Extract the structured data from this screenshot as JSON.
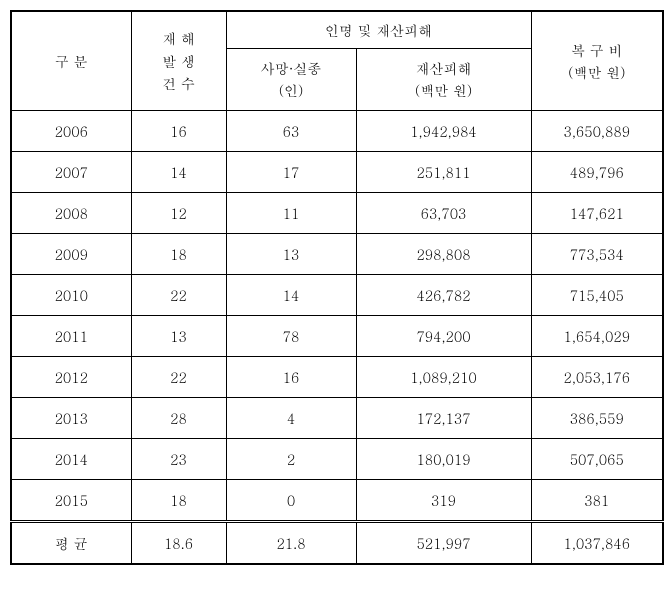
{
  "table": {
    "headers": {
      "category": "구  분",
      "disaster_count_line1": "재 해",
      "disaster_count_line2": "발 생",
      "disaster_count_line3": "건 수",
      "damage_group": "인명 및 재산피해",
      "deaths_line1": "사망·실종",
      "deaths_line2": "(인)",
      "property_line1": "재산피해",
      "property_line2": "(백만 원)",
      "recovery_line1": "복 구 비",
      "recovery_line2": "(백만 원)"
    },
    "rows": [
      {
        "year": "2006",
        "disasters": "16",
        "deaths": "63",
        "property": "1,942,984",
        "recovery": "3,650,889"
      },
      {
        "year": "2007",
        "disasters": "14",
        "deaths": "17",
        "property": "251,811",
        "recovery": "489,796"
      },
      {
        "year": "2008",
        "disasters": "12",
        "deaths": "11",
        "property": "63,703",
        "recovery": "147,621"
      },
      {
        "year": "2009",
        "disasters": "18",
        "deaths": "13",
        "property": "298,808",
        "recovery": "773,534"
      },
      {
        "year": "2010",
        "disasters": "22",
        "deaths": "14",
        "property": "426,782",
        "recovery": "715,405"
      },
      {
        "year": "2011",
        "disasters": "13",
        "deaths": "78",
        "property": "794,200",
        "recovery": "1,654,029"
      },
      {
        "year": "2012",
        "disasters": "22",
        "deaths": "16",
        "property": "1,089,210",
        "recovery": "2,053,176"
      },
      {
        "year": "2013",
        "disasters": "28",
        "deaths": "4",
        "property": "172,137",
        "recovery": "386,559"
      },
      {
        "year": "2014",
        "disasters": "23",
        "deaths": "2",
        "property": "180,019",
        "recovery": "507,065"
      },
      {
        "year": "2015",
        "disasters": "18",
        "deaths": "0",
        "property": "319",
        "recovery": "381"
      }
    ],
    "average": {
      "label": "평  균",
      "disasters": "18.6",
      "deaths": "21.8",
      "property": "521,997",
      "recovery": "1,037,846"
    }
  }
}
